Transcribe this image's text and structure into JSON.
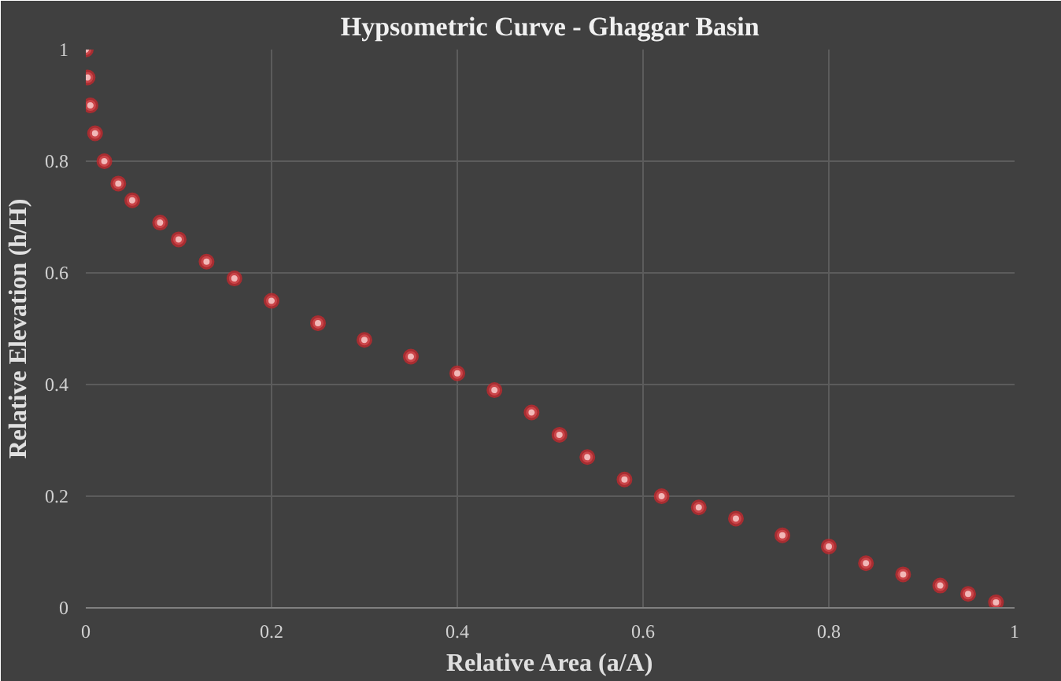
{
  "chart_data": {
    "type": "scatter",
    "title": "Hypsometric Curve - Ghaggar Basin",
    "xlabel": "Relative Area (a/A)",
    "ylabel": "Relative Elevation (h/H)",
    "x": [
      0,
      0.002,
      0.005,
      0.01,
      0.02,
      0.035,
      0.05,
      0.08,
      0.1,
      0.13,
      0.16,
      0.2,
      0.25,
      0.3,
      0.35,
      0.4,
      0.44,
      0.48,
      0.51,
      0.54,
      0.58,
      0.62,
      0.66,
      0.7,
      0.75,
      0.8,
      0.84,
      0.88,
      0.92,
      0.95,
      0.98
    ],
    "series": [
      {
        "color": "#c0282d",
        "values": [
          1.0,
          0.95,
          0.9,
          0.85,
          0.8,
          0.76,
          0.73,
          0.69,
          0.66,
          0.62,
          0.59,
          0.55,
          0.51,
          0.48,
          0.45,
          0.42,
          0.39,
          0.35,
          0.31,
          0.27,
          0.23,
          0.2,
          0.18,
          0.16,
          0.13,
          0.11,
          0.08,
          0.06,
          0.04,
          0.025,
          0.01
        ]
      }
    ],
    "xlim": [
      0,
      1
    ],
    "ylim": [
      0,
      1
    ],
    "xticks": [
      0,
      0.2,
      0.4,
      0.6,
      0.8,
      1
    ],
    "yticks": [
      0,
      0.2,
      0.4,
      0.6,
      0.8,
      1
    ],
    "grid": true,
    "marker": "circle"
  }
}
